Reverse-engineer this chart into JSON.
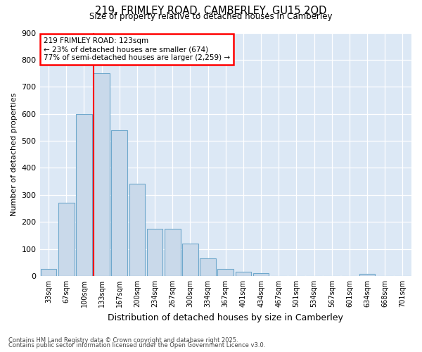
{
  "title1": "219, FRIMLEY ROAD, CAMBERLEY, GU15 2QD",
  "title2": "Size of property relative to detached houses in Camberley",
  "xlabel": "Distribution of detached houses by size in Camberley",
  "ylabel": "Number of detached properties",
  "footnote1": "Contains HM Land Registry data © Crown copyright and database right 2025.",
  "footnote2": "Contains public sector information licensed under the Open Government Licence v3.0.",
  "categories": [
    "33sqm",
    "67sqm",
    "100sqm",
    "133sqm",
    "167sqm",
    "200sqm",
    "234sqm",
    "267sqm",
    "300sqm",
    "334sqm",
    "367sqm",
    "401sqm",
    "434sqm",
    "467sqm",
    "501sqm",
    "534sqm",
    "567sqm",
    "601sqm",
    "634sqm",
    "668sqm",
    "701sqm"
  ],
  "bar_values": [
    25,
    270,
    600,
    750,
    540,
    340,
    175,
    175,
    120,
    65,
    25,
    15,
    10,
    0,
    0,
    0,
    0,
    0,
    8,
    0,
    0
  ],
  "bar_color": "#c9d9ea",
  "bar_edge_color": "#6fa8cc",
  "annotation_title": "219 FRIMLEY ROAD: 123sqm",
  "annotation_line1": "← 23% of detached houses are smaller (674)",
  "annotation_line2": "77% of semi-detached houses are larger (2,259) →",
  "ylim": [
    0,
    900
  ],
  "yticks": [
    0,
    100,
    200,
    300,
    400,
    500,
    600,
    700,
    800,
    900
  ],
  "fig_bg_color": "#ffffff",
  "plot_bg_color": "#dce8f5",
  "grid_color": "#ffffff",
  "red_line_index": 3
}
